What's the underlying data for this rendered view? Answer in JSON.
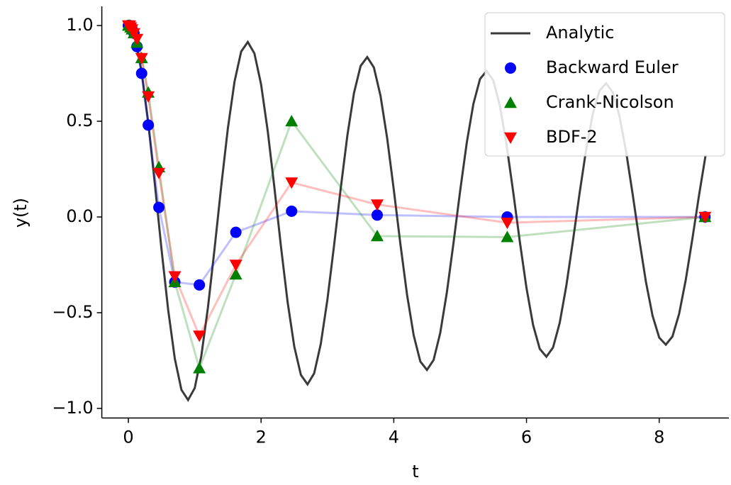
{
  "chart_data": {
    "type": "line",
    "xlabel": "t",
    "ylabel": "y(t)",
    "xlim": [
      -0.4,
      9.05
    ],
    "ylim": [
      -1.05,
      1.1
    ],
    "xticks": [
      0,
      2,
      4,
      6,
      8
    ],
    "yticks": [
      {
        "value": -1.0,
        "label": "−1.0"
      },
      {
        "value": -0.5,
        "label": "−0.5"
      },
      {
        "value": 0.0,
        "label": "0.0"
      },
      {
        "value": 0.5,
        "label": "0.5"
      },
      {
        "value": 1.0,
        "label": "1.0"
      }
    ],
    "grid": false,
    "legend": "upper right",
    "series": [
      {
        "name": "Analytic",
        "color": "#3a3a3a",
        "x": [
          0,
          0.1,
          0.2,
          0.3,
          0.4,
          0.5,
          0.6,
          0.7,
          0.8,
          0.9,
          1.0,
          1.1,
          1.2,
          1.3,
          1.4,
          1.5,
          1.6,
          1.7,
          1.8,
          1.9,
          2.0,
          2.1,
          2.2,
          2.3,
          2.4,
          2.5,
          2.6,
          2.7,
          2.8,
          2.9,
          3.0,
          3.1,
          3.2,
          3.3,
          3.4,
          3.5,
          3.6,
          3.7,
          3.8,
          3.9,
          4.0,
          4.1,
          4.2,
          4.3,
          4.4,
          4.5,
          4.6,
          4.7,
          4.8,
          4.9,
          5.0,
          5.1,
          5.2,
          5.3,
          5.4,
          5.5,
          5.6,
          5.7,
          5.8,
          5.9,
          6.0,
          6.1,
          6.2,
          6.3,
          6.4,
          6.5,
          6.6,
          6.7,
          6.8,
          6.9,
          7.0,
          7.1,
          7.2,
          7.3,
          7.4,
          7.5,
          7.6,
          7.7,
          7.8,
          7.9,
          8.0,
          8.1,
          8.2,
          8.3,
          8.4,
          8.5,
          8.6,
          8.7
        ],
        "values": [
          1.0,
          0.935,
          0.758,
          0.493,
          0.17,
          -0.17,
          -0.485,
          -0.74,
          -0.903,
          -0.956,
          -0.894,
          -0.725,
          -0.471,
          -0.163,
          0.162,
          0.464,
          0.707,
          0.864,
          0.914,
          0.854,
          0.693,
          0.45,
          0.156,
          -0.155,
          -0.444,
          -0.676,
          -0.825,
          -0.874,
          -0.817,
          -0.663,
          -0.431,
          -0.149,
          0.148,
          0.424,
          0.647,
          0.789,
          0.835,
          0.781,
          0.633,
          0.412,
          0.143,
          -0.142,
          -0.406,
          -0.618,
          -0.755,
          -0.799,
          -0.747,
          -0.606,
          -0.394,
          -0.136,
          0.136,
          0.388,
          0.591,
          0.721,
          0.763,
          0.714,
          0.579,
          0.376,
          0.13,
          -0.13,
          -0.371,
          -0.565,
          -0.689,
          -0.73,
          -0.682,
          -0.554,
          -0.36,
          -0.125,
          0.124,
          0.354,
          0.54,
          0.659,
          0.698,
          0.652,
          0.529,
          0.344,
          0.119,
          -0.118,
          -0.339,
          -0.516,
          -0.63,
          -0.667,
          -0.624,
          -0.506,
          -0.329,
          -0.114,
          0.113,
          0.324
        ]
      },
      {
        "name": "Backward Euler",
        "color": "#0000ff",
        "marker": "circle",
        "x": [
          0,
          0.02,
          0.035,
          0.055,
          0.085,
          0.13,
          0.2,
          0.3,
          0.46,
          0.7,
          1.07,
          1.62,
          2.46,
          3.75,
          5.71,
          8.69
        ],
        "values": [
          1.0,
          1.0,
          0.99,
          0.98,
          0.96,
          0.89,
          0.75,
          0.48,
          0.05,
          -0.34,
          -0.355,
          -0.08,
          0.03,
          0.01,
          0.0,
          0.0
        ]
      },
      {
        "name": "Crank-Nicolson",
        "color": "#008000",
        "marker": "triangle-up",
        "x": [
          0,
          0.02,
          0.035,
          0.055,
          0.085,
          0.13,
          0.2,
          0.3,
          0.46,
          0.7,
          1.07,
          1.62,
          2.46,
          3.75,
          5.71,
          8.69
        ],
        "values": [
          1.0,
          1.0,
          0.99,
          0.98,
          0.96,
          0.91,
          0.83,
          0.65,
          0.26,
          -0.34,
          -0.79,
          -0.3,
          0.5,
          -0.1,
          -0.105,
          0.0
        ]
      },
      {
        "name": "BDF-2",
        "color": "#ff0000",
        "marker": "triangle-down",
        "x": [
          0,
          0.02,
          0.035,
          0.055,
          0.085,
          0.13,
          0.2,
          0.3,
          0.46,
          0.7,
          1.07,
          1.62,
          2.46,
          3.75,
          5.71,
          8.69
        ],
        "values": [
          1.0,
          1.0,
          0.99,
          0.98,
          0.96,
          0.93,
          0.83,
          0.63,
          0.23,
          -0.31,
          -0.62,
          -0.25,
          0.18,
          0.065,
          -0.03,
          0.0
        ]
      }
    ]
  }
}
